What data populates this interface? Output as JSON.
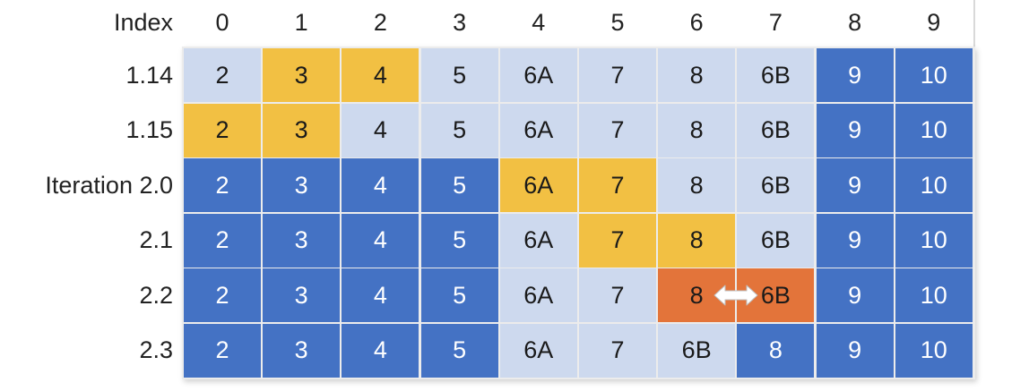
{
  "header": {
    "index_label": "Index",
    "columns": [
      "0",
      "1",
      "2",
      "3",
      "4",
      "5",
      "6",
      "7",
      "8",
      "9"
    ]
  },
  "rows": [
    {
      "label": "1.14",
      "cells": [
        {
          "text": "2",
          "color": "light"
        },
        {
          "text": "3",
          "color": "yellow"
        },
        {
          "text": "4",
          "color": "yellow"
        },
        {
          "text": "5",
          "color": "light"
        },
        {
          "text": "6A",
          "color": "light"
        },
        {
          "text": "7",
          "color": "light"
        },
        {
          "text": "8",
          "color": "light"
        },
        {
          "text": "6B",
          "color": "light"
        },
        {
          "text": "9",
          "color": "dark"
        },
        {
          "text": "10",
          "color": "dark"
        }
      ]
    },
    {
      "label": "1.15",
      "cells": [
        {
          "text": "2",
          "color": "yellow"
        },
        {
          "text": "3",
          "color": "yellow"
        },
        {
          "text": "4",
          "color": "light"
        },
        {
          "text": "5",
          "color": "light"
        },
        {
          "text": "6A",
          "color": "light"
        },
        {
          "text": "7",
          "color": "light"
        },
        {
          "text": "8",
          "color": "light"
        },
        {
          "text": "6B",
          "color": "light"
        },
        {
          "text": "9",
          "color": "dark"
        },
        {
          "text": "10",
          "color": "dark"
        }
      ]
    },
    {
      "label": "Iteration 2.0",
      "cells": [
        {
          "text": "2",
          "color": "dark"
        },
        {
          "text": "3",
          "color": "dark"
        },
        {
          "text": "4",
          "color": "dark"
        },
        {
          "text": "5",
          "color": "dark"
        },
        {
          "text": "6A",
          "color": "yellow"
        },
        {
          "text": "7",
          "color": "yellow"
        },
        {
          "text": "8",
          "color": "light"
        },
        {
          "text": "6B",
          "color": "light"
        },
        {
          "text": "9",
          "color": "dark"
        },
        {
          "text": "10",
          "color": "dark"
        }
      ]
    },
    {
      "label": "2.1",
      "cells": [
        {
          "text": "2",
          "color": "dark"
        },
        {
          "text": "3",
          "color": "dark"
        },
        {
          "text": "4",
          "color": "dark"
        },
        {
          "text": "5",
          "color": "dark"
        },
        {
          "text": "6A",
          "color": "light"
        },
        {
          "text": "7",
          "color": "yellow"
        },
        {
          "text": "8",
          "color": "yellow"
        },
        {
          "text": "6B",
          "color": "light"
        },
        {
          "text": "9",
          "color": "dark"
        },
        {
          "text": "10",
          "color": "dark"
        }
      ]
    },
    {
      "label": "2.2",
      "cells": [
        {
          "text": "2",
          "color": "dark"
        },
        {
          "text": "3",
          "color": "dark"
        },
        {
          "text": "4",
          "color": "dark"
        },
        {
          "text": "5",
          "color": "dark"
        },
        {
          "text": "6A",
          "color": "light"
        },
        {
          "text": "7",
          "color": "light"
        },
        {
          "text": "8",
          "color": "orange"
        },
        {
          "text": "6B",
          "color": "orange"
        },
        {
          "text": "9",
          "color": "dark"
        },
        {
          "text": "10",
          "color": "dark"
        }
      ],
      "swap_between": [
        6,
        7
      ]
    },
    {
      "label": "2.3",
      "cells": [
        {
          "text": "2",
          "color": "dark"
        },
        {
          "text": "3",
          "color": "dark"
        },
        {
          "text": "4",
          "color": "dark"
        },
        {
          "text": "5",
          "color": "dark"
        },
        {
          "text": "6A",
          "color": "light"
        },
        {
          "text": "7",
          "color": "light"
        },
        {
          "text": "6B",
          "color": "light"
        },
        {
          "text": "8",
          "color": "dark"
        },
        {
          "text": "9",
          "color": "dark"
        },
        {
          "text": "10",
          "color": "dark"
        }
      ]
    }
  ],
  "colors": {
    "light": "#cdd9ee",
    "dark": "#4472c4",
    "yellow": "#f2c043",
    "orange": "#e3743a"
  },
  "icons": {
    "swap": "double-arrow-icon"
  }
}
